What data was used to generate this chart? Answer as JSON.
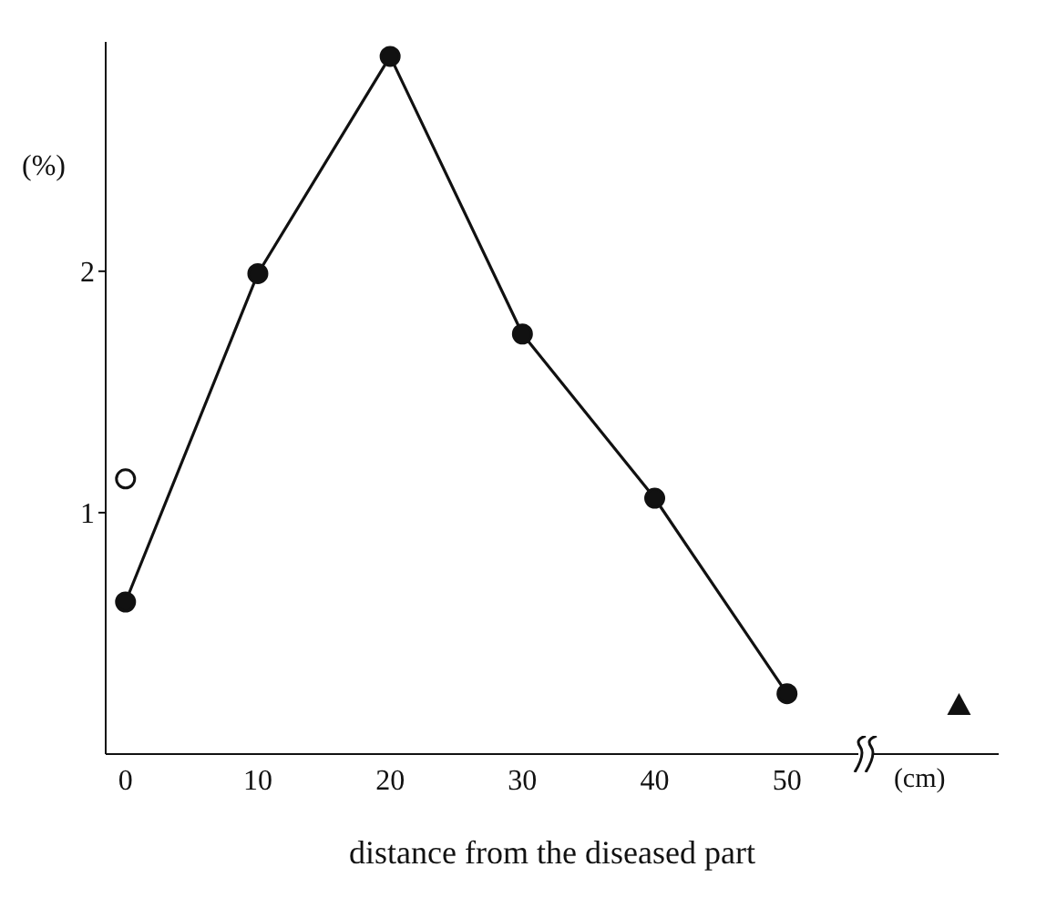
{
  "chart_data": {
    "type": "line",
    "xlabel": "distance from the diseased part",
    "ylabel": "(%)",
    "annotations": [
      "(cm)"
    ],
    "xlim": [
      -1.5,
      66
    ],
    "xticks": [
      0,
      10,
      20,
      30,
      40,
      50
    ],
    "ylim": [
      0,
      2.95
    ],
    "yticks": [
      1,
      2
    ],
    "grid": false,
    "series": [
      {
        "color": "#111111",
        "marker": "circle",
        "x": [
          0,
          10,
          20,
          30,
          40,
          50
        ],
        "values": [
          0.63,
          1.99,
          2.89,
          1.74,
          1.06,
          0.25
        ]
      },
      {
        "type": "scatter",
        "color": "#111111",
        "marker": "circle",
        "x": [
          0
        ],
        "values": [
          1.14
        ]
      },
      {
        "type": "scatter",
        "color": "#111111",
        "marker": "triangle",
        "x": [
          63
        ],
        "values": [
          0.2
        ]
      }
    ]
  }
}
